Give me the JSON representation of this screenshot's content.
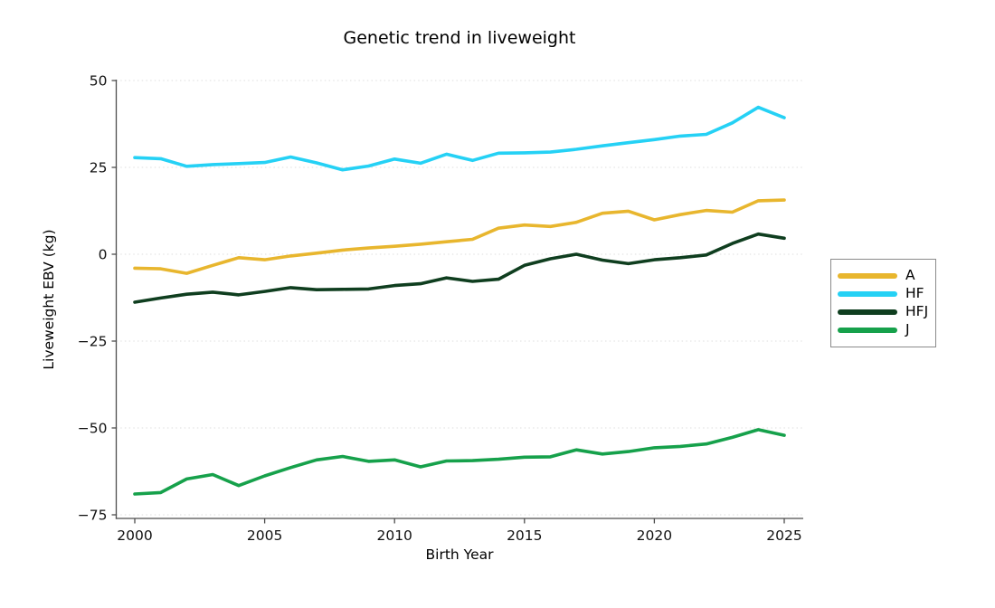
{
  "chart_data": {
    "type": "line",
    "title": "Genetic trend in liveweight",
    "xlabel": "Birth Year",
    "ylabel": "Liveweight EBV (kg)",
    "x": [
      2000,
      2001,
      2002,
      2003,
      2004,
      2005,
      2006,
      2007,
      2008,
      2009,
      2010,
      2011,
      2012,
      2013,
      2014,
      2015,
      2016,
      2017,
      2018,
      2019,
      2020,
      2021,
      2022,
      2023,
      2024,
      2025
    ],
    "series": [
      {
        "name": "A",
        "color": "#E8B62E",
        "values": [
          -4.0,
          -4.2,
          -5.5,
          -3.2,
          -1.0,
          -1.6,
          -0.5,
          0.3,
          1.2,
          1.8,
          2.3,
          2.9,
          3.6,
          4.3,
          7.5,
          8.4,
          8.0,
          9.2,
          11.8,
          12.4,
          9.9,
          11.4,
          12.6,
          12.1,
          15.4,
          15.6
        ]
      },
      {
        "name": "HF",
        "color": "#25D1F5",
        "values": [
          27.8,
          27.5,
          25.3,
          25.8,
          26.1,
          26.4,
          28.0,
          26.3,
          24.3,
          25.4,
          27.4,
          26.2,
          28.8,
          27.0,
          29.1,
          29.2,
          29.4,
          30.2,
          31.2,
          32.1,
          33.0,
          34.0,
          34.5,
          37.8,
          42.3,
          39.3
        ]
      },
      {
        "name": "HFJ",
        "color": "#0F3E1F",
        "values": [
          -13.8,
          -12.6,
          -11.5,
          -10.9,
          -11.7,
          -10.7,
          -9.6,
          -10.2,
          -10.1,
          -10.0,
          -9.0,
          -8.5,
          -6.8,
          -7.8,
          -7.2,
          -3.2,
          -1.3,
          0.0,
          -1.7,
          -2.7,
          -1.6,
          -1.0,
          -0.2,
          3.1,
          5.8,
          4.6
        ]
      },
      {
        "name": "J",
        "color": "#16A14B",
        "values": [
          -69.0,
          -68.6,
          -64.7,
          -63.4,
          -66.6,
          -63.8,
          -61.4,
          -59.2,
          -58.2,
          -59.6,
          -59.2,
          -61.2,
          -59.5,
          -59.4,
          -59.0,
          -58.4,
          -58.3,
          -56.3,
          -57.5,
          -56.8,
          -55.7,
          -55.3,
          -54.6,
          -52.7,
          -50.5,
          -52.1
        ]
      }
    ],
    "x_ticks": [
      2000,
      2005,
      2010,
      2015,
      2020,
      2025
    ],
    "y_ticks": [
      50,
      25,
      0,
      -25,
      -50,
      -75
    ],
    "xlim": [
      2000,
      2025
    ],
    "ylim": [
      -75,
      50
    ],
    "grid": "horizontal-dotted",
    "legend_position": "center-right",
    "legend_labels": [
      "A",
      "HF",
      "HFJ",
      "J"
    ],
    "axis_color": "#4d4d4d",
    "tick_label_color": "#111111",
    "gridline_color": "#dedede"
  }
}
